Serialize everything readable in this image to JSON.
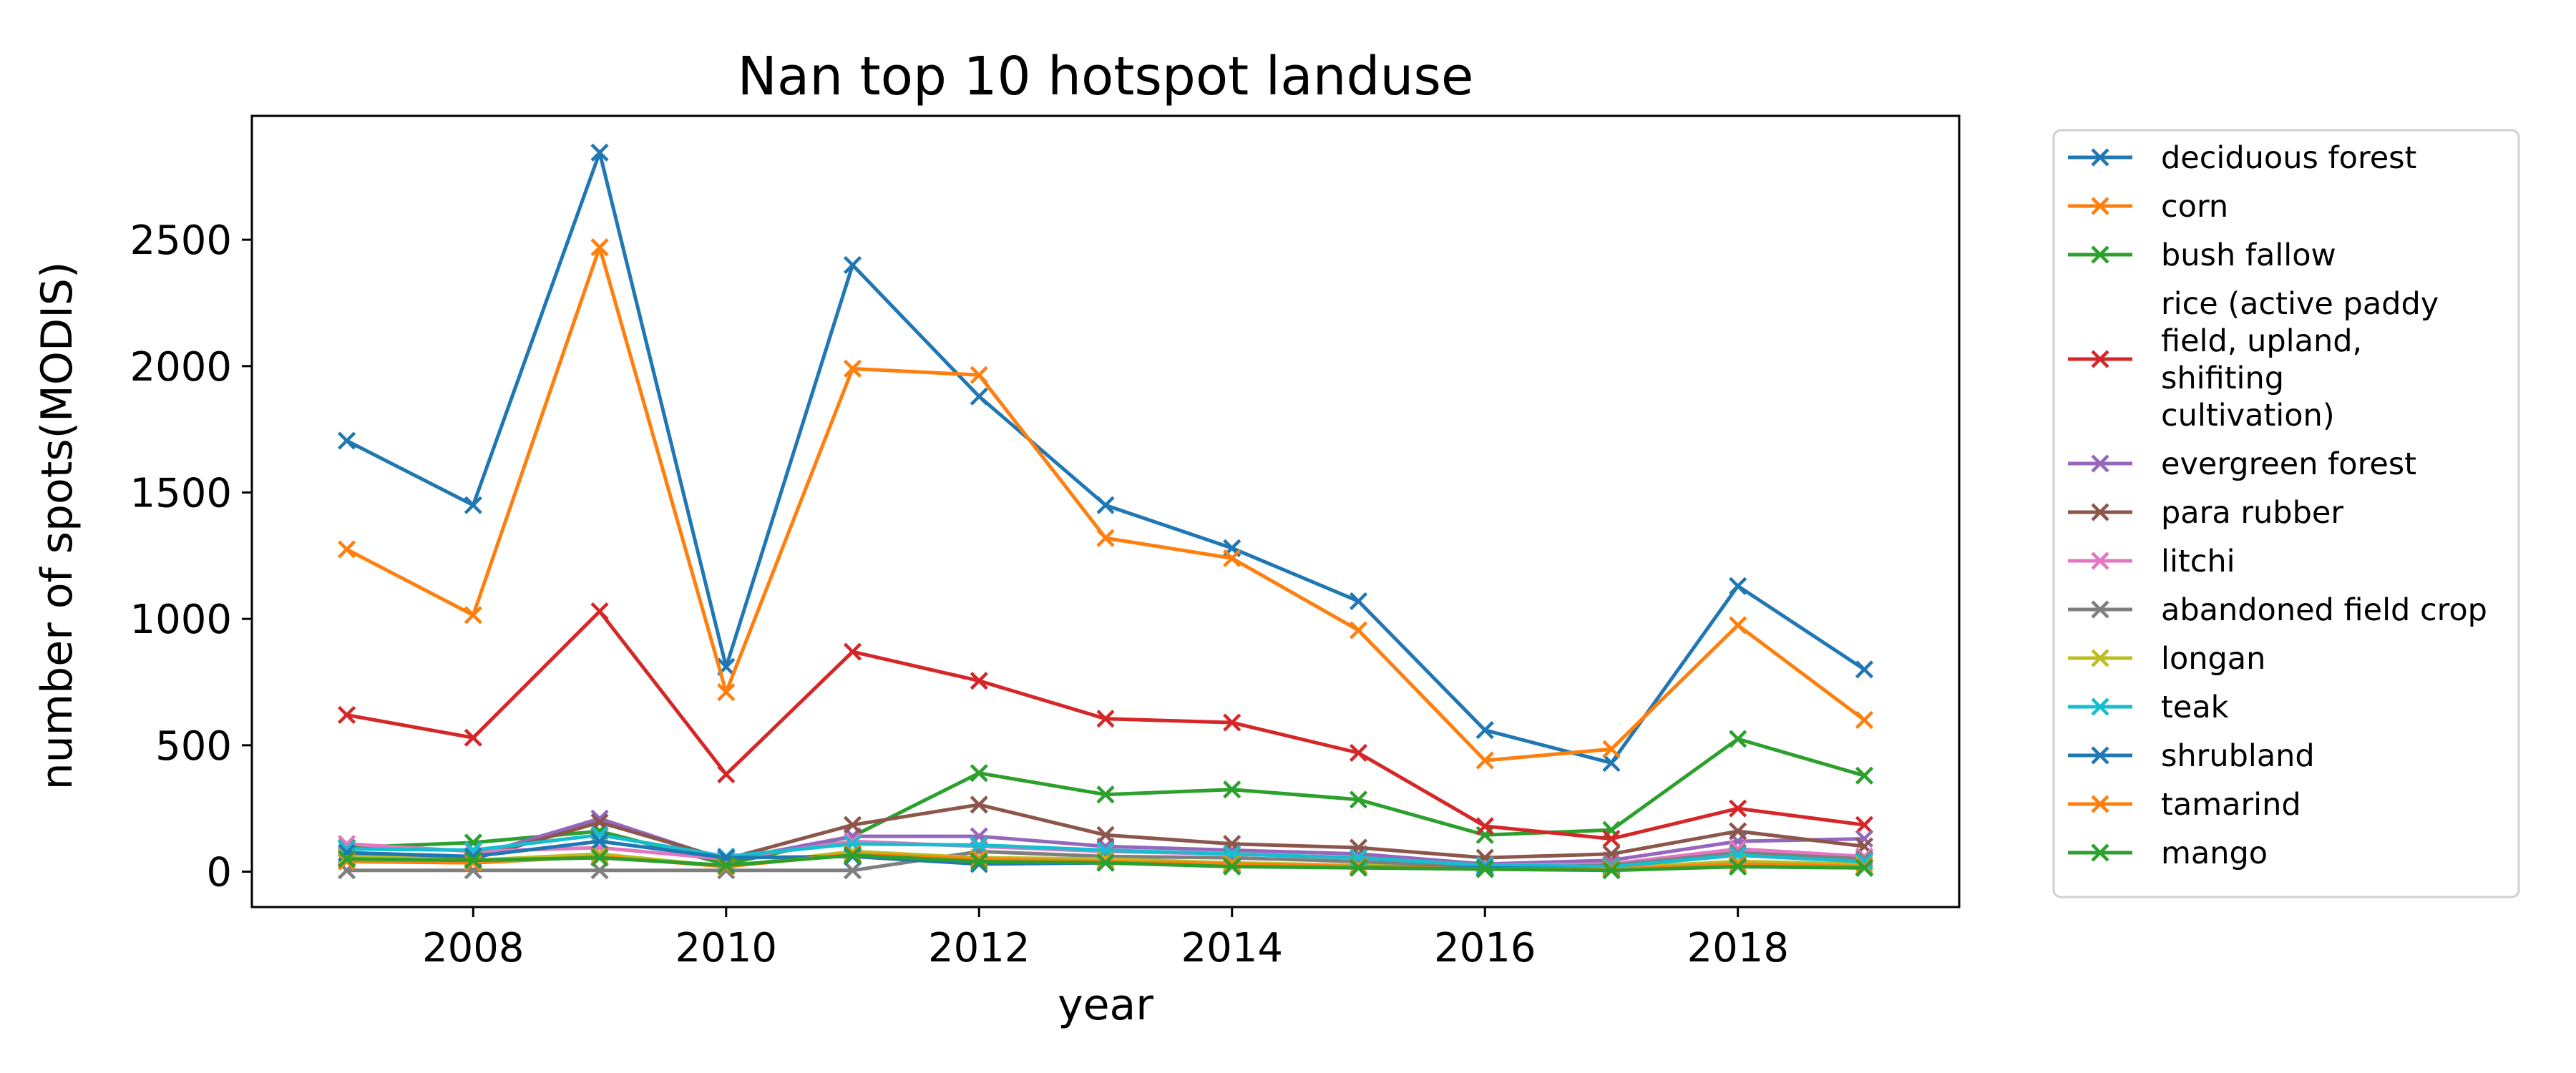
{
  "chart_data": {
    "type": "line",
    "title": "Nan top 10 hotspot landuse",
    "xlabel": "year",
    "ylabel": "number of spots(MODIS)",
    "xlim": [
      2006.25,
      2019.75
    ],
    "ylim": [
      -140,
      2990
    ],
    "xticks": [
      2008,
      2010,
      2012,
      2014,
      2016,
      2018
    ],
    "yticks": [
      0,
      500,
      1000,
      1500,
      2000,
      2500
    ],
    "grid": false,
    "legend_position": "outside-right",
    "marker": "x",
    "x": [
      2007,
      2008,
      2009,
      2010,
      2011,
      2012,
      2013,
      2014,
      2015,
      2016,
      2017,
      2018,
      2019
    ],
    "series": [
      {
        "name": "deciduous forest",
        "color": "#1f77b4",
        "values": [
          1705,
          1450,
          2845,
          810,
          2400,
          1880,
          1450,
          1280,
          1070,
          560,
          430,
          1130,
          800
        ]
      },
      {
        "name": "corn",
        "color": "#ff7f0e",
        "values": [
          1275,
          1015,
          2470,
          710,
          1990,
          1965,
          1320,
          1240,
          955,
          440,
          485,
          975,
          600
        ]
      },
      {
        "name": "bush fallow",
        "color": "#2ca02c",
        "values": [
          95,
          115,
          160,
          30,
          140,
          390,
          305,
          325,
          285,
          145,
          165,
          525,
          380
        ]
      },
      {
        "name": "rice (active paddy field, upland, shifiting cultivation)",
        "label_lines": [
          "rice (active paddy",
          "field, upland,",
          "shifiting",
          "cultivation)"
        ],
        "color": "#d62728",
        "values": [
          620,
          530,
          1030,
          385,
          870,
          755,
          605,
          590,
          470,
          180,
          130,
          250,
          185
        ]
      },
      {
        "name": "evergreen forest",
        "color": "#9467bd",
        "values": [
          65,
          60,
          210,
          45,
          140,
          140,
          100,
          85,
          70,
          30,
          45,
          120,
          130
        ]
      },
      {
        "name": "para rubber",
        "color": "#8c564b",
        "values": [
          55,
          50,
          195,
          50,
          185,
          265,
          145,
          110,
          95,
          55,
          70,
          160,
          100
        ]
      },
      {
        "name": "litchi",
        "color": "#e377c2",
        "values": [
          110,
          80,
          95,
          50,
          120,
          100,
          80,
          70,
          55,
          25,
          30,
          90,
          60
        ]
      },
      {
        "name": "abandoned field crop",
        "color": "#7f7f7f",
        "values": [
          5,
          5,
          5,
          5,
          5,
          80,
          60,
          55,
          40,
          15,
          25,
          75,
          50
        ]
      },
      {
        "name": "longan",
        "color": "#bcbd22",
        "values": [
          60,
          45,
          70,
          20,
          80,
          55,
          50,
          35,
          25,
          10,
          15,
          40,
          30
        ]
      },
      {
        "name": "teak",
        "color": "#17becf",
        "values": [
          90,
          85,
          145,
          60,
          110,
          105,
          85,
          70,
          55,
          25,
          20,
          65,
          40
        ]
      },
      {
        "name": "shrubland",
        "color": "#1f77b4",
        "values": [
          75,
          60,
          120,
          55,
          60,
          30,
          35,
          25,
          20,
          15,
          10,
          20,
          15
        ]
      },
      {
        "name": "tamarind",
        "color": "#ff7f0e",
        "values": [
          40,
          35,
          60,
          20,
          70,
          50,
          40,
          30,
          20,
          10,
          10,
          30,
          20
        ]
      },
      {
        "name": "mango",
        "color": "#2ca02c",
        "values": [
          50,
          45,
          55,
          25,
          65,
          40,
          35,
          20,
          15,
          10,
          5,
          20,
          15
        ]
      }
    ]
  }
}
